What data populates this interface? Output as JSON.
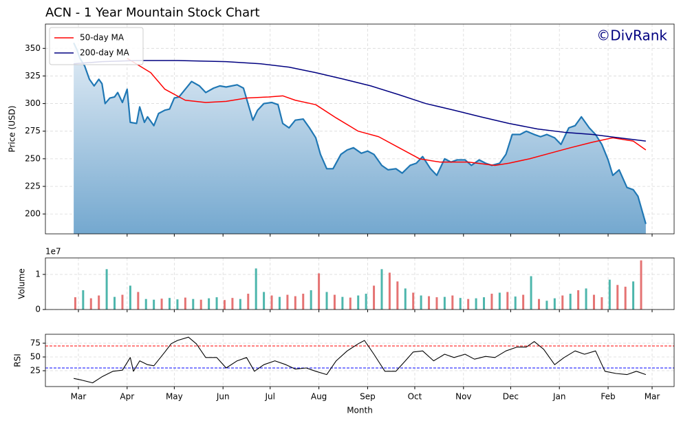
{
  "chart_data": [
    {
      "type": "area",
      "title": "ACN - 1 Year Mountain Stock Chart",
      "y_label": "Price (USD)",
      "watermark": "©DivRank",
      "ylim": [
        182,
        372
      ],
      "yticks": [
        200,
        225,
        250,
        275,
        300,
        325,
        350
      ],
      "grid": true,
      "legend": "upper left",
      "series": [
        {
          "color": "#1f77b4",
          "fill": true,
          "x": [
            -3,
            -1,
            1,
            4,
            7,
            10,
            13,
            15,
            17,
            20,
            23,
            25,
            28,
            31,
            33,
            37,
            39,
            42,
            44,
            48,
            51,
            55,
            58,
            61,
            64,
            68,
            72,
            77,
            81,
            86,
            90,
            94,
            101,
            105,
            111,
            114,
            118,
            123,
            127,
            130,
            134,
            138,
            143,
            147,
            151,
            154,
            158,
            162,
            167,
            171,
            175,
            180,
            184,
            188,
            193,
            197,
            202,
            206,
            211,
            215,
            219,
            224,
            228,
            233,
            237,
            241,
            246,
            250,
            255,
            259,
            263,
            268,
            272,
            276,
            281,
            285,
            290,
            294,
            298,
            303,
            307,
            312,
            316,
            320,
            325,
            329,
            333,
            337,
            340,
            344,
            349,
            353,
            356,
            361
          ],
          "values": [
            355,
            349,
            341,
            334,
            322,
            316,
            322,
            318,
            300,
            305,
            306,
            310,
            301,
            313,
            283,
            282,
            297,
            283,
            288,
            280,
            291,
            294,
            295,
            305,
            306,
            313,
            320,
            316,
            310,
            314,
            316,
            315,
            317,
            314,
            285,
            294,
            300,
            301,
            299,
            282,
            278,
            285,
            286,
            278,
            269,
            254,
            241,
            241,
            254,
            258,
            260,
            255,
            257,
            254,
            244,
            240,
            241,
            237,
            244,
            246,
            252,
            241,
            235,
            250,
            247,
            249,
            249,
            244,
            249,
            246,
            244,
            246,
            254,
            272,
            272,
            275,
            272,
            270,
            272,
            269,
            263,
            278,
            280,
            288,
            278,
            272,
            263,
            249,
            235,
            240,
            224,
            222,
            216,
            191
          ]
        },
        {
          "name": "50-day MA",
          "color": "#ff0000",
          "x": [
            31,
            46,
            55,
            68,
            81,
            94,
            107,
            121,
            130,
            138,
            151,
            164,
            178,
            191,
            204,
            217,
            230,
            248,
            265,
            274,
            287,
            300,
            313,
            327,
            340,
            353,
            361
          ],
          "values": [
            341,
            328,
            313,
            303,
            301,
            302,
            305,
            306,
            307,
            303,
            299,
            287,
            275,
            270,
            260,
            250,
            247,
            247,
            244,
            246,
            250,
            255,
            260,
            265,
            269,
            266,
            258
          ]
        },
        {
          "name": "200-day MA",
          "color": "#000080",
          "x": [
            -3,
            15,
            37,
            63,
            94,
            116,
            134,
            151,
            169,
            186,
            204,
            221,
            239,
            256,
            274,
            292,
            309,
            327,
            344,
            361
          ],
          "values": [
            336,
            338,
            339,
            339,
            338,
            336,
            333,
            328,
            322,
            316,
            308,
            300,
            294,
            288,
            282,
            277,
            274,
            272,
            269,
            266
          ]
        }
      ]
    },
    {
      "type": "bar",
      "y_label": "Volume",
      "offset_label": "1e7",
      "ylim": [
        0,
        14700000
      ],
      "yticks": [
        0,
        {
          "value": 10000000,
          "label": "1"
        }
      ],
      "grid": true,
      "colors": [
        "#4db6ac",
        "#e57373"
      ],
      "x": [
        -2,
        3,
        8,
        13,
        18,
        23,
        28,
        33,
        38,
        43,
        48,
        53,
        58,
        63,
        68,
        73,
        78,
        83,
        88,
        93,
        98,
        103,
        108,
        113,
        118,
        123,
        128,
        133,
        138,
        143,
        148,
        153,
        158,
        163,
        168,
        173,
        178,
        183,
        188,
        193,
        198,
        203,
        208,
        213,
        218,
        223,
        228,
        233,
        238,
        243,
        248,
        253,
        258,
        263,
        268,
        273,
        278,
        283,
        288,
        293,
        298,
        303,
        308,
        313,
        318,
        323,
        328,
        333,
        338,
        343,
        348,
        353,
        358
      ],
      "values": [
        3500000,
        5500000,
        3200000,
        4000000,
        11500000,
        3600000,
        4200000,
        6800000,
        5000000,
        3000000,
        2800000,
        3100000,
        3300000,
        2900000,
        3400000,
        3000000,
        2800000,
        3200000,
        3500000,
        2700000,
        3300000,
        3000000,
        4500000,
        11700000,
        5000000,
        4000000,
        3600000,
        4200000,
        3800000,
        4500000,
        5500000,
        10300000,
        5000000,
        4200000,
        3600000,
        3400000,
        4000000,
        4500000,
        6800000,
        11500000,
        10500000,
        8000000,
        6000000,
        4800000,
        4000000,
        3800000,
        3500000,
        3600000,
        4000000,
        3300000,
        3000000,
        3200000,
        3500000,
        4500000,
        4800000,
        5000000,
        3700000,
        4200000,
        9500000,
        3000000,
        2500000,
        3200000,
        4000000,
        4500000,
        5500000,
        6000000,
        4200000,
        3500000,
        8500000,
        7000000,
        6500000,
        8000000,
        14000000
      ],
      "up": [
        0,
        1,
        0,
        0,
        1,
        1,
        0,
        1,
        0,
        1,
        1,
        0,
        1,
        1,
        0,
        1,
        0,
        1,
        1,
        0,
        0,
        1,
        0,
        1,
        1,
        0,
        1,
        0,
        0,
        0,
        1,
        0,
        1,
        0,
        1,
        0,
        1,
        1,
        0,
        1,
        0,
        0,
        1,
        0,
        1,
        0,
        0,
        1,
        0,
        1,
        0,
        1,
        1,
        0,
        1,
        0,
        1,
        0,
        1,
        0,
        1,
        1,
        0,
        1,
        0,
        1,
        0,
        0,
        1,
        0,
        0,
        1,
        0
      ]
    },
    {
      "type": "line",
      "y_label": "RSI",
      "x_label": "Month",
      "ylim": [
        -3.75,
        91.25
      ],
      "yticks": [
        25,
        50,
        75
      ],
      "grid": true,
      "xlim": [
        -21,
        379
      ],
      "xticks": [
        {
          "value": 0,
          "label": "Mar"
        },
        {
          "value": 31,
          "label": "Apr"
        },
        {
          "value": 61,
          "label": "May"
        },
        {
          "value": 92,
          "label": "Jun"
        },
        {
          "value": 122,
          "label": "Jul"
        },
        {
          "value": 153,
          "label": "Aug"
        },
        {
          "value": 184,
          "label": "Sep"
        },
        {
          "value": 214,
          "label": "Oct"
        },
        {
          "value": 245,
          "label": "Nov"
        },
        {
          "value": 275,
          "label": "Dec"
        },
        {
          "value": 306,
          "label": "Jan"
        },
        {
          "value": 337,
          "label": "Feb"
        },
        {
          "value": 365,
          "label": "Mar"
        }
      ],
      "hlines": [
        {
          "value": 70,
          "color": "#ff0000"
        },
        {
          "value": 30,
          "color": "#0000ff"
        }
      ],
      "series": [
        {
          "color": "#000000",
          "x": [
            -3,
            2,
            9,
            15,
            22,
            28,
            33,
            35,
            39,
            44,
            48,
            55,
            59,
            63,
            70,
            75,
            81,
            88,
            94,
            101,
            107,
            112,
            118,
            125,
            132,
            138,
            145,
            151,
            158,
            164,
            171,
            178,
            182,
            188,
            195,
            202,
            208,
            213,
            219,
            226,
            233,
            239,
            246,
            252,
            259,
            265,
            272,
            279,
            285,
            290,
            296,
            303,
            309,
            316,
            322,
            329,
            335,
            342,
            349,
            355,
            361
          ],
          "values": [
            11,
            8,
            3,
            14,
            24,
            26,
            49,
            24,
            43,
            36,
            34,
            59,
            74,
            80,
            86,
            74,
            49,
            49,
            30,
            43,
            49,
            24,
            36,
            43,
            36,
            28,
            30,
            24,
            18,
            43,
            61,
            74,
            80,
            55,
            24,
            24,
            43,
            59,
            61,
            43,
            55,
            49,
            55,
            46,
            51,
            49,
            61,
            68,
            68,
            78,
            64,
            36,
            49,
            61,
            55,
            61,
            24,
            20,
            18,
            24,
            18
          ]
        }
      ]
    }
  ]
}
